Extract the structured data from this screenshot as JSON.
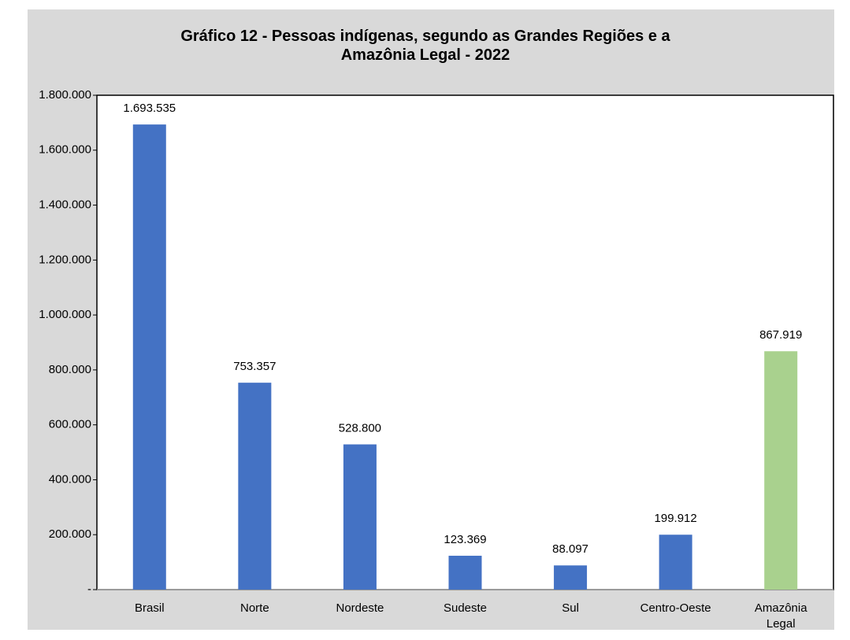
{
  "chart_data": {
    "type": "bar",
    "title": "Gráfico 12 - Pessoas indígenas, segundo as Grandes Regiões e a Amazônia Legal - 2022",
    "categories": [
      "Brasil",
      "Norte",
      "Nordeste",
      "Sudeste",
      "Sul",
      "Centro-Oeste",
      "Amazônia Legal"
    ],
    "values": [
      1693535,
      753357,
      528800,
      123369,
      88097,
      199912,
      867919
    ],
    "value_labels": [
      "1.693.535",
      "753.357",
      "528.800",
      "123.369",
      "88.097",
      "199.912",
      "867.919"
    ],
    "colors": [
      "#4472c4",
      "#4472c4",
      "#4472c4",
      "#4472c4",
      "#4472c4",
      "#4472c4",
      "#a9d18e"
    ],
    "ylim": [
      0,
      1800000
    ],
    "yticks": [
      {
        "value": 0,
        "label": "-"
      },
      {
        "value": 200000,
        "label": "200.000"
      },
      {
        "value": 400000,
        "label": "400.000"
      },
      {
        "value": 600000,
        "label": "600.000"
      },
      {
        "value": 800000,
        "label": "800.000"
      },
      {
        "value": 1000000,
        "label": "1.000.000"
      },
      {
        "value": 1200000,
        "label": "1.200.000"
      },
      {
        "value": 1400000,
        "label": "1.400.000"
      },
      {
        "value": 1600000,
        "label": "1.600.000"
      },
      {
        "value": 1800000,
        "label": "1.800.000"
      }
    ],
    "grid": false
  }
}
